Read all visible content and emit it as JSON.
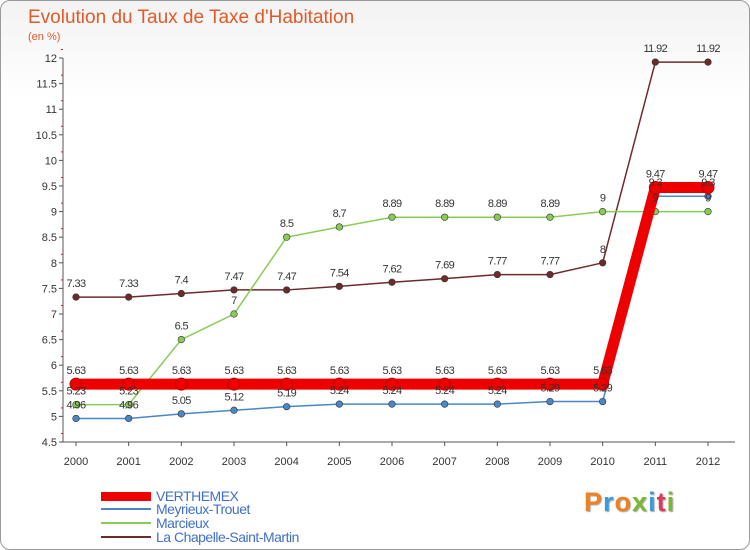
{
  "title": "Evolution du Taux de Taxe d'Habitation",
  "subtitle": "(en %)",
  "logo": {
    "text": "Proxiti",
    "colors": [
      "#f08020",
      "#3a9be0",
      "#f08020",
      "#7ab830",
      "#3a9be0",
      "#e03a5a",
      "#7ab830"
    ]
  },
  "chart_data": {
    "type": "line",
    "title": "Evolution du Taux de Taxe d'Habitation",
    "ylabel": "(en %)",
    "xlabel": "",
    "categories": [
      "2000",
      "2001",
      "2002",
      "2003",
      "2004",
      "2005",
      "2006",
      "2007",
      "2008",
      "2009",
      "2010",
      "2011",
      "2012"
    ],
    "ylim": [
      4.5,
      12
    ],
    "yticks": [
      "4.5",
      "5",
      "5.5",
      "6",
      "6.5",
      "7",
      "7.5",
      "8",
      "8.5",
      "9",
      "9.5",
      "10",
      "10.5",
      "11",
      "11.5",
      "12"
    ],
    "grid": false,
    "legend_position": "bottom-left",
    "series": [
      {
        "name": "VERTHEMEX",
        "color": "#ee0000",
        "values": [
          5.63,
          5.63,
          5.63,
          5.63,
          5.63,
          5.63,
          5.63,
          5.63,
          5.63,
          5.63,
          5.63,
          9.47,
          9.47
        ],
        "labels": [
          "5.63",
          "5.63",
          "5.63",
          "5.63",
          "5.63",
          "5.63",
          "5.63",
          "5.63",
          "5.63",
          "5.63",
          "5.63",
          "9.47",
          "9.47"
        ]
      },
      {
        "name": "Meyrieux-Trouet",
        "color": "#4a86c8",
        "values": [
          4.96,
          4.96,
          5.05,
          5.12,
          5.19,
          5.24,
          5.24,
          5.24,
          5.24,
          5.29,
          5.29,
          9.3,
          9.3
        ],
        "labels": [
          "4.96",
          "4.96",
          "5.05",
          "5.12",
          "5.19",
          "5.24",
          "5.24",
          "5.24",
          "5.24",
          "5.29",
          "5.29",
          "9.3",
          "9.3"
        ]
      },
      {
        "name": "Marcieux",
        "color": "#88cc55",
        "values": [
          5.23,
          5.23,
          6.5,
          7,
          8.5,
          8.7,
          8.89,
          8.89,
          8.89,
          8.89,
          9,
          9,
          9
        ],
        "labels": [
          "5.23",
          "5.23",
          "6.5",
          "7",
          "8.5",
          "8.7",
          "8.89",
          "8.89",
          "8.89",
          "8.89",
          "9",
          "9",
          "9"
        ]
      },
      {
        "name": "La Chapelle-Saint-Martin",
        "color": "#6e2a2a",
        "values": [
          7.33,
          7.33,
          7.4,
          7.47,
          7.47,
          7.54,
          7.62,
          7.69,
          7.77,
          7.77,
          8,
          11.92,
          11.92
        ],
        "labels": [
          "7.33",
          "7.33",
          "7.4",
          "7.47",
          "7.47",
          "7.54",
          "7.62",
          "7.69",
          "7.77",
          "7.77",
          "8",
          "11.92",
          "11.92"
        ]
      }
    ]
  }
}
